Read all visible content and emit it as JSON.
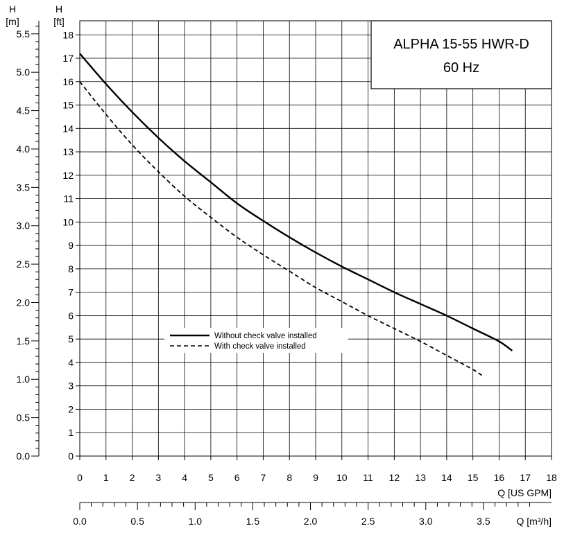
{
  "chart_data": {
    "type": "line",
    "title": "ALPHA 15-55 HWR-D",
    "subtitle": "60 Hz",
    "x_axis": {
      "label": "Q [US GPM]",
      "range": [
        0,
        18
      ],
      "ticks": [
        "0",
        "1",
        "2",
        "3",
        "4",
        "5",
        "6",
        "7",
        "8",
        "9",
        "10",
        "11",
        "12",
        "13",
        "14",
        "15",
        "16",
        "17",
        "18"
      ]
    },
    "x2_axis": {
      "label": "Q [m³/h]",
      "range": [
        0,
        4.09
      ],
      "ticks": [
        "0.0",
        "0.5",
        "1.0",
        "1.5",
        "2.0",
        "2.5",
        "3.0",
        "3.5"
      ]
    },
    "y_axis": {
      "label": "H",
      "unit": "[ft]",
      "range": [
        0,
        18.6
      ],
      "ticks": [
        "0",
        "1",
        "2",
        "3",
        "4",
        "5",
        "6",
        "7",
        "8",
        "9",
        "10",
        "11",
        "12",
        "13",
        "14",
        "15",
        "16",
        "17",
        "18"
      ]
    },
    "y2_axis": {
      "label": "H",
      "unit": "[m]",
      "range": [
        0,
        5.67
      ],
      "ticks": [
        "0.0",
        "0.5",
        "1.0",
        "1.5",
        "2.0",
        "2.5",
        "3.0",
        "3.5",
        "4.0",
        "4.5",
        "5.0",
        "5.5"
      ]
    },
    "grid": true,
    "legend_position": "center-left",
    "series": [
      {
        "name": "Without check valve installed",
        "style": "solid",
        "color": "#000000",
        "x": [
          0,
          1,
          2,
          3,
          4,
          5,
          6,
          7,
          8,
          9,
          10,
          11,
          12,
          13,
          14,
          15,
          16,
          16.5
        ],
        "y": [
          17.2,
          15.9,
          14.7,
          13.6,
          12.6,
          11.7,
          10.8,
          10.05,
          9.35,
          8.7,
          8.1,
          7.55,
          7.0,
          6.5,
          6.0,
          5.45,
          4.9,
          4.5
        ]
      },
      {
        "name": "With check valve installed",
        "style": "dashed",
        "color": "#000000",
        "x": [
          0,
          1,
          2,
          3,
          4,
          5,
          6,
          7,
          8,
          9,
          10,
          11,
          12,
          13,
          14,
          15,
          15.4
        ],
        "y": [
          16.0,
          14.6,
          13.3,
          12.15,
          11.1,
          10.2,
          9.35,
          8.6,
          7.9,
          7.2,
          6.6,
          6.0,
          5.45,
          4.9,
          4.3,
          3.7,
          3.4
        ]
      }
    ]
  }
}
